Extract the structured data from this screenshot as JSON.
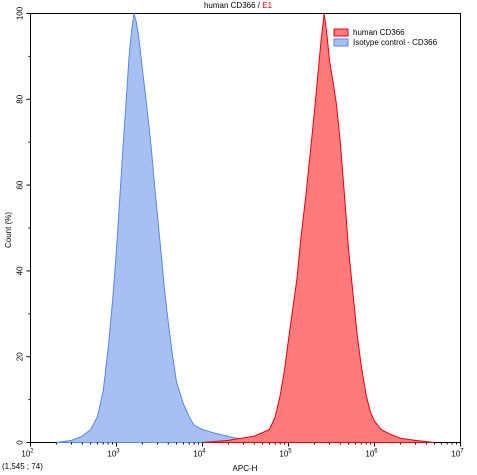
{
  "chart_data": {
    "type": "area",
    "title": "human CD366",
    "title_gate": "E1",
    "title_separator": " / ",
    "xlabel": "APC-H",
    "ylabel": "Count (%)",
    "x_scale": "log",
    "xlim": [
      100,
      10000000
    ],
    "ylim": [
      0,
      100
    ],
    "x_ticks": [
      {
        "base": "10",
        "exp": "2",
        "value": 100
      },
      {
        "base": "10",
        "exp": "3",
        "value": 1000
      },
      {
        "base": "10",
        "exp": "4",
        "value": 10000
      },
      {
        "base": "10",
        "exp": "5",
        "value": 100000
      },
      {
        "base": "10",
        "exp": "6",
        "value": 1000000
      },
      {
        "base": "10",
        "exp": "7",
        "value": 10000000
      }
    ],
    "y_ticks": [
      "0",
      "20",
      "40",
      "60",
      "80",
      "100"
    ],
    "grid": false,
    "legend_position": "top-right",
    "coordinate_readout": "(1,545 ; 74)",
    "series": [
      {
        "name": "human CD366",
        "fill": "#ff7b7b",
        "stroke": "#e8000e",
        "points": [
          [
            10000,
            0
          ],
          [
            20000,
            0.5
          ],
          [
            40000,
            1.5
          ],
          [
            60000,
            3
          ],
          [
            70000,
            6
          ],
          [
            80000,
            11
          ],
          [
            90000,
            17
          ],
          [
            100000,
            24
          ],
          [
            110000,
            30
          ],
          [
            125000,
            38
          ],
          [
            140000,
            48
          ],
          [
            160000,
            58
          ],
          [
            180000,
            68
          ],
          [
            200000,
            77
          ],
          [
            220000,
            86
          ],
          [
            240000,
            94
          ],
          [
            260000,
            100
          ],
          [
            280000,
            95
          ],
          [
            300000,
            89
          ],
          [
            330000,
            84
          ],
          [
            360000,
            79
          ],
          [
            400000,
            70
          ],
          [
            450000,
            57
          ],
          [
            500000,
            45
          ],
          [
            560000,
            35
          ],
          [
            630000,
            25
          ],
          [
            700000,
            18
          ],
          [
            800000,
            11
          ],
          [
            900000,
            7
          ],
          [
            1000000,
            5
          ],
          [
            1200000,
            3
          ],
          [
            1500000,
            2
          ],
          [
            2000000,
            1
          ],
          [
            3000000,
            0.5
          ],
          [
            5000000,
            0
          ]
        ]
      },
      {
        "name": "Isotype control - CD366",
        "fill": "#a7c0f4",
        "stroke": "#5a86e0",
        "points": [
          [
            200,
            0
          ],
          [
            300,
            0.5
          ],
          [
            400,
            1.5
          ],
          [
            500,
            3
          ],
          [
            600,
            6
          ],
          [
            700,
            12
          ],
          [
            800,
            22
          ],
          [
            900,
            33
          ],
          [
            1000,
            45
          ],
          [
            1100,
            58
          ],
          [
            1200,
            70
          ],
          [
            1300,
            80
          ],
          [
            1400,
            90
          ],
          [
            1500,
            96
          ],
          [
            1600,
            100
          ],
          [
            1700,
            98
          ],
          [
            1800,
            95
          ],
          [
            1900,
            91
          ],
          [
            2000,
            87
          ],
          [
            2200,
            80
          ],
          [
            2500,
            70
          ],
          [
            2800,
            59
          ],
          [
            3200,
            47
          ],
          [
            3600,
            36
          ],
          [
            4000,
            28
          ],
          [
            4500,
            20
          ],
          [
            5000,
            14
          ],
          [
            6000,
            9
          ],
          [
            7000,
            6
          ],
          [
            8000,
            4
          ],
          [
            10000,
            3
          ],
          [
            15000,
            2
          ],
          [
            25000,
            1
          ],
          [
            40000,
            0.5
          ],
          [
            60000,
            0
          ]
        ]
      }
    ]
  }
}
